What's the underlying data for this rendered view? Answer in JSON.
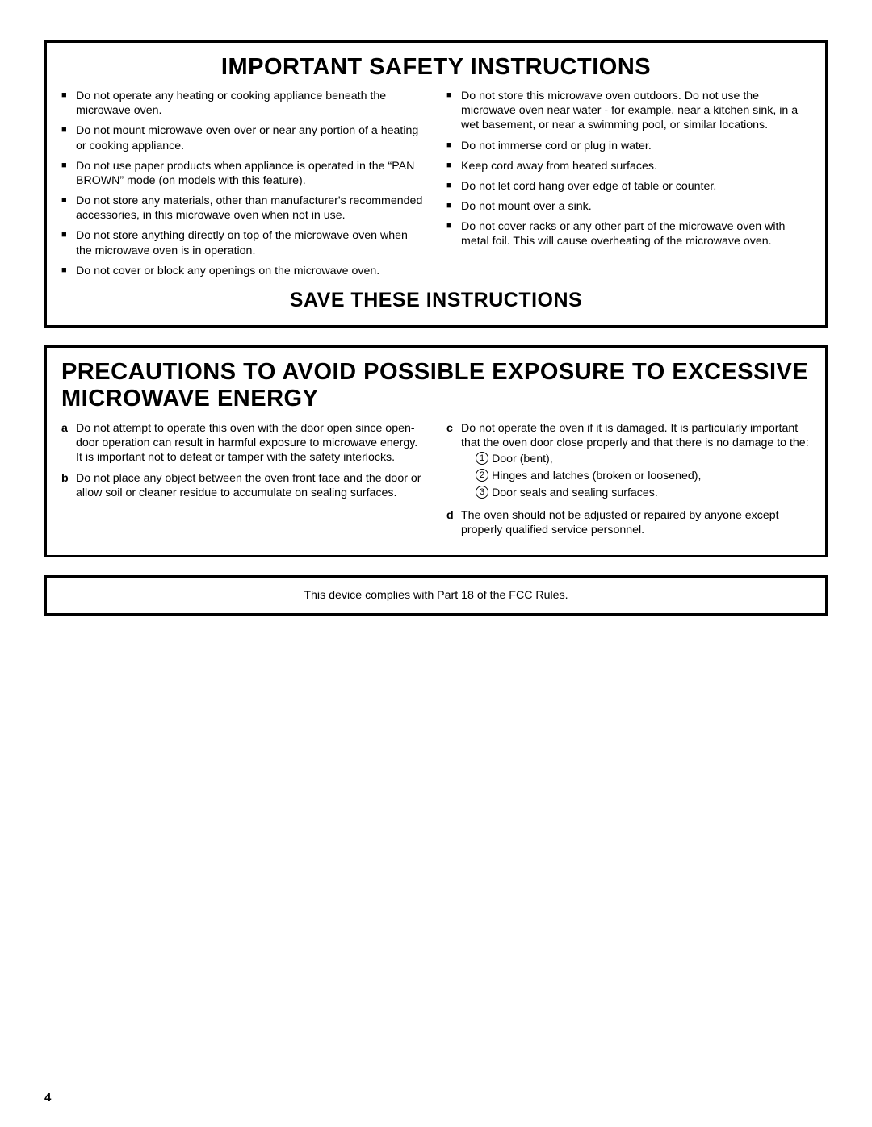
{
  "page_number": "4",
  "safety_box": {
    "title": "IMPORTANT SAFETY INSTRUCTIONS",
    "footer": "SAVE THESE INSTRUCTIONS",
    "left_bullets": [
      "Do not operate any heating or cooking appliance beneath the microwave oven.",
      "Do not mount microwave oven over or near any portion of a heating or cooking appliance.",
      "Do not use paper products when appliance is operated in the “PAN BROWN” mode (on models with this feature).",
      "Do not store any materials, other than manufacturer's recommended accessories, in this microwave oven when not in use.",
      "Do not store anything directly on top of the microwave oven when the microwave oven is in operation.",
      "Do not cover or block any openings on the microwave oven."
    ],
    "right_bullets": [
      "Do not store this microwave oven outdoors. Do not use the microwave oven near water - for example, near a kitchen sink, in a wet basement, or near a swimming pool, or similar locations.",
      "Do not immerse cord or plug in water.",
      "Keep cord away from heated surfaces.",
      "Do not let cord hang over edge of table or counter.",
      "Do not mount over a sink.",
      "Do not cover racks or any other part of the microwave oven with metal foil. This will cause overheating of the microwave oven."
    ]
  },
  "precautions_box": {
    "title": "PRECAUTIONS TO AVOID POSSIBLE EXPOSURE TO EXCESSIVE MICROWAVE ENERGY",
    "left_items": [
      {
        "label": "a",
        "text": "Do not attempt to operate this oven with the door open since open-door operation can result in harmful exposure to microwave energy. It is important not to defeat or tamper with the safety interlocks."
      },
      {
        "label": "b",
        "text": "Do not place any object between the oven front face and the door or allow soil or cleaner residue to accumulate on sealing surfaces."
      }
    ],
    "right_items": {
      "c": {
        "label": "c",
        "text": "Do not operate the oven if it is damaged. It is particularly important that the oven door close properly and that there is no damage to the:",
        "subitems": [
          {
            "num": "1",
            "text": "Door (bent),"
          },
          {
            "num": "2",
            "text": "Hinges and latches (broken or loosened),"
          },
          {
            "num": "3",
            "text": "Door seals and sealing surfaces."
          }
        ]
      },
      "d": {
        "label": "d",
        "text": "The oven should not be adjusted or repaired by anyone except properly qualified service personnel."
      }
    }
  },
  "fcc_notice": "This device complies with Part 18 of the FCC Rules."
}
